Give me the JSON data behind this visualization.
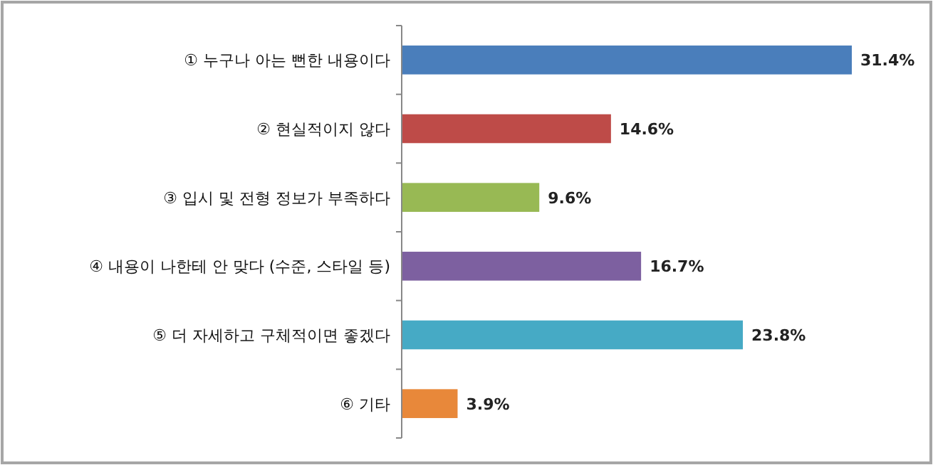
{
  "chart_data": {
    "type": "bar",
    "orientation": "horizontal",
    "categories": [
      "① 누구나 아는 뻔한 내용이다",
      "② 현실적이지 않다",
      "③ 입시 및 전형 정보가 부족하다",
      "④ 내용이 나한테 안 맞다 (수준, 스타일 등)",
      "⑤ 더 자세하고 구체적이면 좋겠다",
      "⑥ 기타"
    ],
    "values": [
      31.4,
      14.6,
      9.6,
      16.7,
      23.8,
      3.9
    ],
    "colors": [
      "#4a7ebb",
      "#be4b48",
      "#98b954",
      "#7d60a0",
      "#46aac5",
      "#e8883a"
    ],
    "value_labels": [
      "31.4%",
      "14.6%",
      "9.6%",
      "16.7%",
      "23.8%",
      "3.9%"
    ]
  }
}
